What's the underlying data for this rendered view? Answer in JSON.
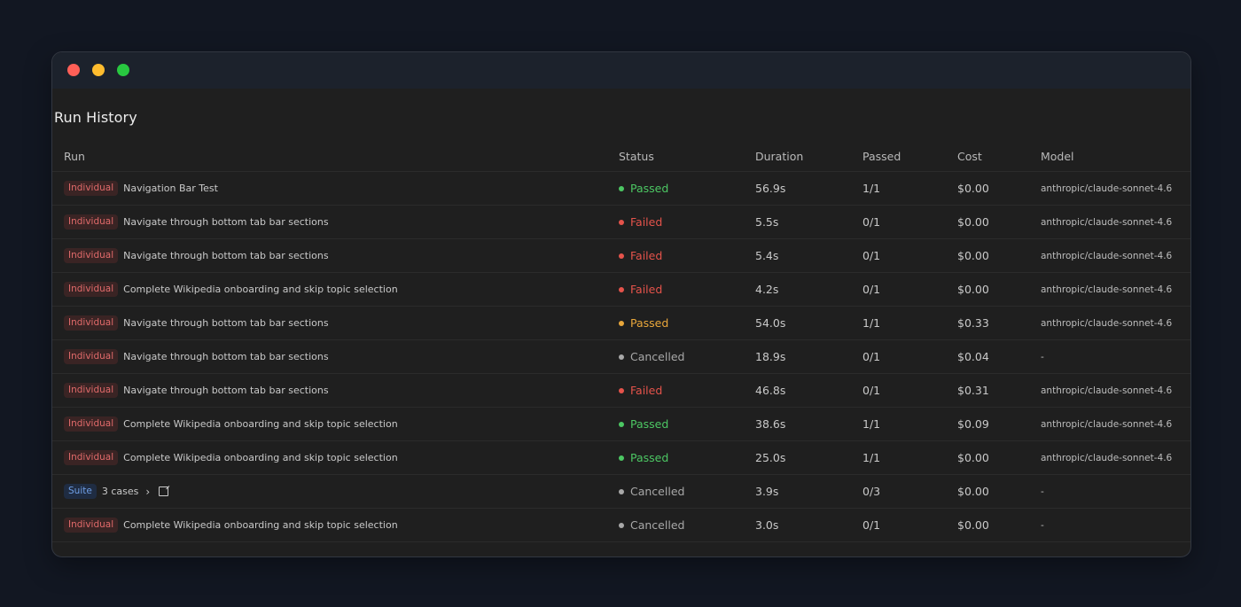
{
  "window": {
    "controls": [
      "close",
      "minimize",
      "maximize"
    ]
  },
  "page": {
    "title": "Run History"
  },
  "table": {
    "columns": [
      "Run",
      "Status",
      "Duration",
      "Passed",
      "Cost",
      "Model"
    ],
    "rows": [
      {
        "type": "Individual",
        "name": "Navigation Bar Test",
        "status": "Passed",
        "status_color": "#4cc763",
        "duration": "56.9s",
        "passed": "1/1",
        "cost": "$0.00",
        "model": "anthropic/claude-sonnet-4.6"
      },
      {
        "type": "Individual",
        "name": "Navigate through bottom tab bar sections",
        "status": "Failed",
        "status_color": "#e5534b",
        "duration": "5.5s",
        "passed": "0/1",
        "cost": "$0.00",
        "model": "anthropic/claude-sonnet-4.6"
      },
      {
        "type": "Individual",
        "name": "Navigate through bottom tab bar sections",
        "status": "Failed",
        "status_color": "#e5534b",
        "duration": "5.4s",
        "passed": "0/1",
        "cost": "$0.00",
        "model": "anthropic/claude-sonnet-4.6"
      },
      {
        "type": "Individual",
        "name": "Complete Wikipedia onboarding and skip topic selection",
        "status": "Failed",
        "status_color": "#e5534b",
        "duration": "4.2s",
        "passed": "0/1",
        "cost": "$0.00",
        "model": "anthropic/claude-sonnet-4.6"
      },
      {
        "type": "Individual",
        "name": "Navigate through bottom tab bar sections",
        "status": "Passed",
        "status_color": "#e9a73b",
        "duration": "54.0s",
        "passed": "1/1",
        "cost": "$0.33",
        "model": "anthropic/claude-sonnet-4.6"
      },
      {
        "type": "Individual",
        "name": "Navigate through bottom tab bar sections",
        "status": "Cancelled",
        "status_color": "#a8a8a8",
        "duration": "18.9s",
        "passed": "0/1",
        "cost": "$0.04",
        "model": "-"
      },
      {
        "type": "Individual",
        "name": "Navigate through bottom tab bar sections",
        "status": "Failed",
        "status_color": "#e5534b",
        "duration": "46.8s",
        "passed": "0/1",
        "cost": "$0.31",
        "model": "anthropic/claude-sonnet-4.6"
      },
      {
        "type": "Individual",
        "name": "Complete Wikipedia onboarding and skip topic selection",
        "status": "Passed",
        "status_color": "#4cc763",
        "duration": "38.6s",
        "passed": "1/1",
        "cost": "$0.09",
        "model": "anthropic/claude-sonnet-4.6"
      },
      {
        "type": "Individual",
        "name": "Complete Wikipedia onboarding and skip topic selection",
        "status": "Passed",
        "status_color": "#4cc763",
        "duration": "25.0s",
        "passed": "1/1",
        "cost": "$0.00",
        "model": "anthropic/claude-sonnet-4.6"
      },
      {
        "type": "Suite",
        "name": "3 cases",
        "status": "Cancelled",
        "status_color": "#a8a8a8",
        "duration": "3.9s",
        "passed": "0/3",
        "cost": "$0.00",
        "model": "-"
      },
      {
        "type": "Individual",
        "name": "Complete Wikipedia onboarding and skip topic selection",
        "status": "Cancelled",
        "status_color": "#a8a8a8",
        "duration": "3.0s",
        "passed": "0/1",
        "cost": "$0.00",
        "model": "-"
      }
    ]
  },
  "icons": {
    "suite_expand": "chevron-right-icon",
    "suite_open": "external-link-icon"
  }
}
